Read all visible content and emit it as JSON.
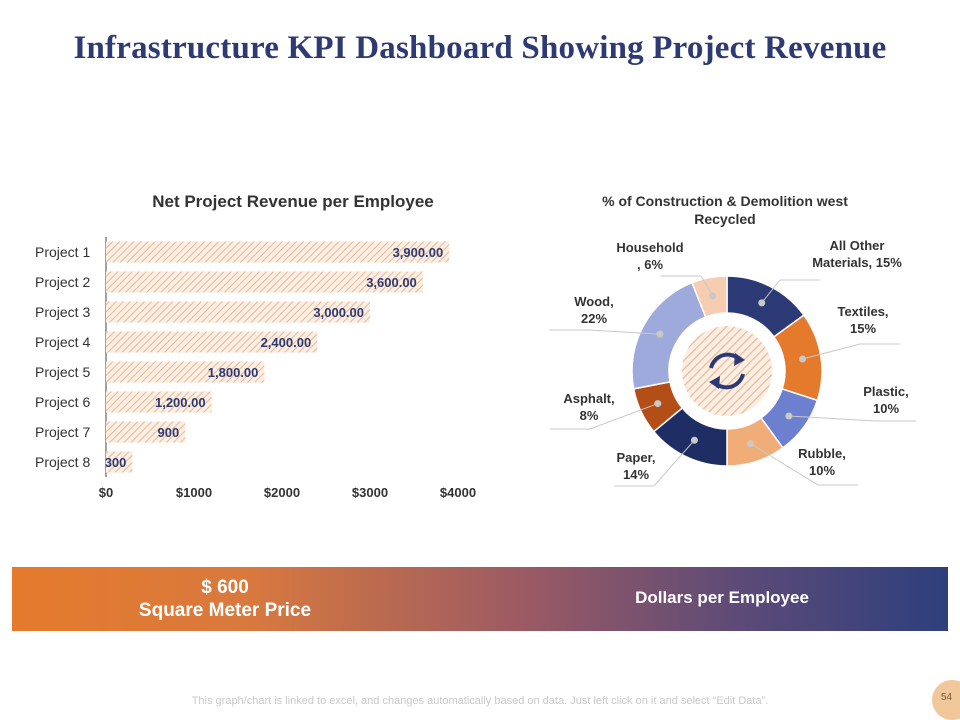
{
  "title": "Infrastructure KPI Dashboard Showing Project Revenue",
  "colors": {
    "title": "#2e3a72",
    "bar_fill": "#fbeee2",
    "bar_hatch": "#e9b898",
    "data_label": "#2e3a72",
    "banner_start": "#e57a2c",
    "banner_end": "#2e3f7c"
  },
  "chart_data": [
    {
      "type": "bar",
      "orientation": "horizontal",
      "title": "Net Project Revenue per Employee",
      "categories": [
        "Project 1",
        "Project 2",
        "Project 3",
        "Project 4",
        "Project 5",
        "Project 6",
        "Project 7",
        "Project 8"
      ],
      "values": [
        3900,
        3600,
        3000,
        2400,
        1800,
        1200,
        900,
        300
      ],
      "value_labels": [
        "3,900.00",
        "3,600.00",
        "3,000.00",
        "2,400.00",
        "1,800.00",
        "1,200.00",
        "900",
        "300"
      ],
      "xlim": [
        0,
        4000
      ],
      "xticks": [
        0,
        1000,
        2000,
        3000,
        4000
      ],
      "xtick_labels": [
        "$0",
        "$1000",
        "$2000",
        "$3000",
        "$4000"
      ],
      "xlabel": "",
      "ylabel": "",
      "grid": false
    },
    {
      "type": "pie",
      "donut": true,
      "title": "% of Construction & Demolition west Recycled",
      "center_icon": "refresh-icon",
      "slices": [
        {
          "label": "All Other Materials",
          "display": "All Other Materials, 15%",
          "value": 15,
          "color": "#2b3a75"
        },
        {
          "label": "Textiles",
          "display": "Textiles, 15%",
          "value": 15,
          "color": "#e57a2c"
        },
        {
          "label": "Plastic",
          "display": "Plastic, 10%",
          "value": 10,
          "color": "#6d80cf"
        },
        {
          "label": "Rubble",
          "display": "Rubble, 10%",
          "value": 10,
          "color": "#f1ad78"
        },
        {
          "label": "Paper",
          "display": "Paper, 14%",
          "value": 14,
          "color": "#1e2d63"
        },
        {
          "label": "Asphalt",
          "display": "Asphalt, 8%",
          "value": 8,
          "color": "#b24e16"
        },
        {
          "label": "Wood",
          "display": "Wood, 22%",
          "value": 22,
          "color": "#9ea9dc"
        },
        {
          "label": "Household",
          "display": "Household, 6%",
          "value": 6,
          "color": "#f6cdb0"
        }
      ]
    }
  ],
  "banner": {
    "price": "$ 600",
    "price_caption": "Square Meter Price",
    "right_text": "Dollars per Employee"
  },
  "footnote": "This graph/chart is linked to excel, and changes automatically based on data. Just left click on it and select “Edit Data”.",
  "page_number": "54"
}
